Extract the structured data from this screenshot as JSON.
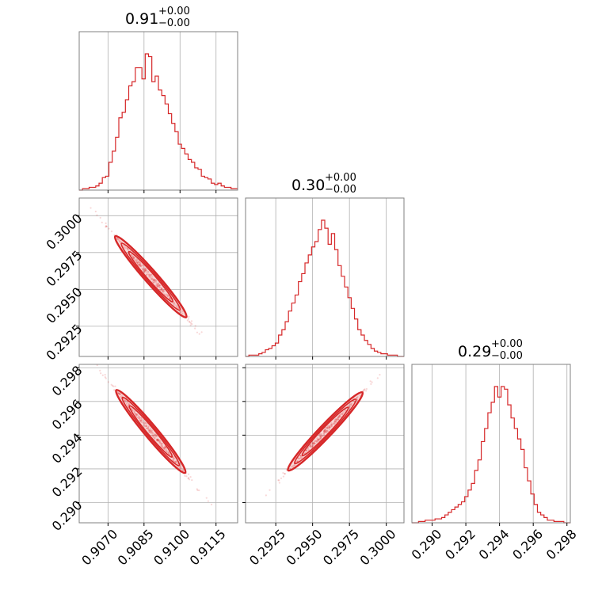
{
  "colors": {
    "accent": "#d62728",
    "grid": "#b0b0b0",
    "frame": "#808080"
  },
  "chart_data": {
    "type": "corner",
    "parameters": [
      {
        "title_value": "0.91",
        "title_plus": "+0.00",
        "title_minus": "−0.00",
        "range": [
          0.9058,
          0.9124
        ],
        "ticks": [
          0.907,
          0.9085,
          0.91,
          0.9115
        ],
        "tick_labels": [
          "0.9070",
          "0.9085",
          "0.9100",
          "0.9115"
        ],
        "hist_start": 0.9058,
        "hist_step": 0.0001375,
        "hist_counts": [
          0,
          1,
          1,
          2,
          2,
          3,
          5,
          9,
          10,
          20,
          28,
          38,
          52,
          56,
          65,
          75,
          78,
          88,
          88,
          80,
          98,
          96,
          78,
          82,
          72,
          68,
          62,
          55,
          48,
          42,
          33,
          30,
          26,
          22,
          20,
          16,
          15,
          10,
          9,
          8,
          5,
          4,
          5,
          3,
          2,
          2,
          1,
          1
        ]
      },
      {
        "title_value": "0.30",
        "title_plus": "+0.00",
        "title_minus": "−0.00",
        "range": [
          0.29045,
          0.3012
        ],
        "ticks": [
          0.2925,
          0.295,
          0.2975,
          0.3
        ],
        "tick_labels": [
          "0.2925",
          "0.2950",
          "0.2975",
          "0.3000"
        ],
        "hist_start": 0.29045,
        "hist_step": 0.000224,
        "hist_counts": [
          0,
          1,
          1,
          1,
          2,
          3,
          5,
          6,
          8,
          10,
          16,
          20,
          26,
          34,
          40,
          46,
          56,
          62,
          70,
          76,
          82,
          86,
          95,
          102,
          96,
          84,
          92,
          80,
          68,
          60,
          52,
          44,
          36,
          28,
          20,
          16,
          12,
          9,
          6,
          4,
          3,
          2,
          2,
          1,
          1,
          1,
          0,
          0
        ]
      },
      {
        "title_value": "0.29",
        "title_plus": "+0.00",
        "title_minus": "−0.00",
        "range": [
          0.2888,
          0.2982
        ],
        "ticks": [
          0.29,
          0.292,
          0.294,
          0.296,
          0.298
        ],
        "tick_labels": [
          "0.290",
          "0.292",
          "0.294",
          "0.296",
          "0.298"
        ],
        "hist_start": 0.2888,
        "hist_step": 0.000196,
        "hist_counts": [
          0,
          0,
          1,
          1,
          2,
          2,
          2,
          3,
          3,
          4,
          6,
          8,
          10,
          12,
          14,
          16,
          20,
          25,
          30,
          40,
          48,
          62,
          72,
          84,
          92,
          104,
          96,
          104,
          102,
          90,
          80,
          72,
          64,
          56,
          42,
          32,
          22,
          14,
          8,
          6,
          4,
          2,
          2,
          1,
          1,
          1,
          0,
          0
        ]
      }
    ],
    "pairs": [
      {
        "x_param": 0,
        "y_param": 1,
        "slope": -1.14,
        "x_center": 0.90878,
        "y_center": 0.29586
      },
      {
        "x_param": 0,
        "y_param": 2,
        "slope": -1.2,
        "x_center": 0.90878,
        "y_center": 0.29422
      },
      {
        "x_param": 1,
        "y_param": 2,
        "slope": 1.05,
        "x_center": 0.29586,
        "y_center": 0.29422
      }
    ],
    "grid": true
  }
}
